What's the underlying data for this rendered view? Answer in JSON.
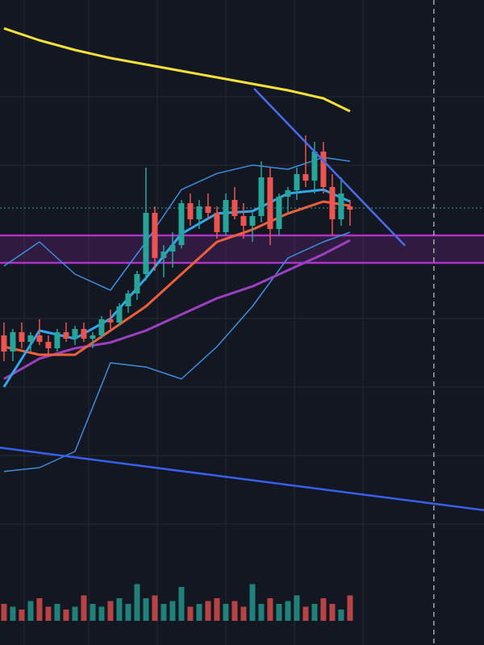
{
  "chart_data": {
    "type": "candlestick",
    "xlim": [
      -0.45,
      54.1
    ],
    "ylim": [
      0,
      100
    ],
    "up_color": "#26a69a",
    "down_color": "#ef5350",
    "candles": [
      [
        48,
        50,
        44,
        45.5
      ],
      [
        45.5,
        49,
        44,
        48.5
      ],
      [
        48.5,
        50,
        46,
        47
      ],
      [
        47,
        48.5,
        45.5,
        48
      ],
      [
        48,
        50.5,
        46.5,
        47
      ],
      [
        47,
        48,
        45,
        46
      ],
      [
        46,
        49,
        45.5,
        48.5
      ],
      [
        48.5,
        50,
        47,
        47.5
      ],
      [
        47.5,
        49.5,
        46.5,
        49
      ],
      [
        49,
        50,
        47,
        47.5
      ],
      [
        47.5,
        48.5,
        46,
        48
      ],
      [
        48,
        51,
        47.5,
        50.5
      ],
      [
        50.5,
        52,
        49,
        50
      ],
      [
        50,
        53,
        49.5,
        52.5
      ],
      [
        52.5,
        55,
        51.5,
        54.5
      ],
      [
        54.5,
        58,
        53.5,
        57.5
      ],
      [
        57.5,
        74,
        56.5,
        67
      ],
      [
        67,
        68,
        58,
        60
      ],
      [
        60,
        62,
        57,
        61
      ],
      [
        61,
        64,
        58.5,
        62
      ],
      [
        62,
        69,
        61.5,
        68.5
      ],
      [
        68.5,
        70,
        65,
        66
      ],
      [
        66,
        69,
        64.5,
        68
      ],
      [
        68,
        70,
        66,
        67
      ],
      [
        67,
        68,
        63,
        64
      ],
      [
        64,
        70,
        63.5,
        69
      ],
      [
        69,
        71,
        66,
        66.5
      ],
      [
        66.5,
        68.5,
        63,
        65
      ],
      [
        65,
        67,
        62.5,
        66.5
      ],
      [
        66.5,
        75,
        65.5,
        72.5
      ],
      [
        72.5,
        74,
        62,
        64.5
      ],
      [
        64.5,
        70,
        63.5,
        69.5
      ],
      [
        69.5,
        71,
        67,
        70.5
      ],
      [
        70.5,
        74,
        69,
        73
      ],
      [
        73,
        79,
        71,
        72
      ],
      [
        72,
        78,
        70,
        76.5
      ],
      [
        76.5,
        78,
        70,
        71
      ],
      [
        71,
        73,
        63.5,
        66
      ],
      [
        66,
        72.5,
        65,
        70
      ],
      [
        68,
        69,
        65,
        67.5
      ]
    ],
    "volume": {
      "ylim": [
        0,
        100
      ],
      "values": [
        30,
        25,
        20,
        35,
        40,
        25,
        30,
        20,
        25,
        45,
        30,
        25,
        35,
        40,
        30,
        65,
        40,
        45,
        30,
        35,
        60,
        25,
        30,
        35,
        40,
        30,
        35,
        25,
        65,
        30,
        40,
        30,
        35,
        45,
        25,
        30,
        40,
        30,
        20,
        45
      ]
    },
    "series": [
      {
        "color": "#f5e13a",
        "x": [
          0,
          4,
          8,
          12,
          16,
          20,
          24,
          28,
          32,
          36,
          39
        ],
        "values": [
          95.6,
          93.75,
          92.25,
          91,
          90,
          89,
          88,
          87,
          86,
          84.75,
          82.75
        ]
      },
      {
        "color": "#3d8ee0",
        "x": [
          0,
          4,
          8,
          12,
          16,
          20,
          24,
          28,
          32,
          36,
          39
        ],
        "values": [
          58.75,
          62.5,
          57.5,
          55,
          62.5,
          70.6,
          73.1,
          74.4,
          73.75,
          75.6,
          75
        ]
      },
      {
        "color": "#3d8ee0",
        "x": [
          0,
          4,
          8,
          12,
          16,
          20,
          24,
          28,
          32,
          36,
          39
        ],
        "values": [
          26.9,
          27.5,
          30,
          43.75,
          43.1,
          41.25,
          46.25,
          52.5,
          60,
          62.5,
          64
        ]
      },
      {
        "color": "#9c3fc0",
        "x": [
          0,
          4,
          8,
          12,
          16,
          20,
          24,
          28,
          32,
          36,
          39
        ],
        "values": [
          41.25,
          44.4,
          46,
          46.9,
          48.75,
          51.25,
          53.75,
          55.6,
          58.1,
          60.6,
          62.75
        ]
      },
      {
        "color": "#f0603a",
        "x": [
          0,
          4,
          8,
          12,
          16,
          20,
          24,
          28,
          32,
          36,
          39
        ],
        "values": [
          46.25,
          45,
          45,
          48.75,
          52.5,
          57.5,
          62.5,
          64.4,
          66.9,
          68.75,
          68.1
        ]
      },
      {
        "color": "#2fa8f0",
        "x": [
          0,
          4,
          8,
          12,
          16,
          20,
          24,
          28,
          32,
          36,
          39
        ],
        "values": [
          40,
          48.75,
          47.5,
          50.6,
          56.9,
          63.75,
          66.9,
          67.25,
          70,
          70.6,
          68.75
        ]
      }
    ],
    "trendlines": [
      {
        "color": "#4a6cf0",
        "x": [
          28.2,
          45.2
        ],
        "values": [
          86.25,
          61.9
        ]
      },
      {
        "color": "#3a5ef0",
        "x": [
          -0.45,
          54.1
        ],
        "values": [
          30.6,
          20.9
        ]
      }
    ],
    "zone": {
      "ylim": [
        59.25,
        63.5
      ],
      "color": "#b030c8"
    },
    "hline": {
      "y": 67.75,
      "color": "#26a69a"
    },
    "vline": {
      "x": 48.45,
      "color": "#c8c8c8"
    }
  }
}
